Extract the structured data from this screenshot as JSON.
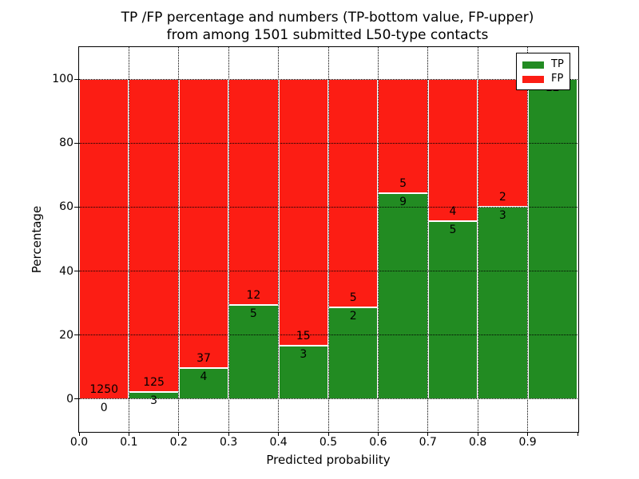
{
  "figure": {
    "title_line1": "TP /FP percentage and numbers (TP-bottom value, FP-upper)",
    "title_line2": "from among 1501 submitted L50-type contacts",
    "xlabel": "Predicted probability",
    "ylabel": "Percentage"
  },
  "legend": {
    "position": "upper-right",
    "items": [
      {
        "label": "TP",
        "color": "#228b22"
      },
      {
        "label": "FP",
        "color": "#fc1d14"
      }
    ]
  },
  "chart_data": {
    "type": "bar",
    "stacked": true,
    "units": "percent",
    "title": "TP /FP percentage and numbers (TP-bottom value, FP-upper) from among 1501 submitted L50-type contacts",
    "xlabel": "Predicted probability",
    "ylabel": "Percentage",
    "total_contacts": 1501,
    "bin_edges": [
      0.0,
      0.1,
      0.2,
      0.3,
      0.4,
      0.5,
      0.6,
      0.7,
      0.8,
      0.9,
      1.0
    ],
    "xtick_labels": [
      "0.0",
      "0.1",
      "0.2",
      "0.3",
      "0.4",
      "0.5",
      "0.6",
      "0.7",
      "0.8",
      "0.9"
    ],
    "ytick_values": [
      0,
      20,
      40,
      60,
      80,
      100
    ],
    "xlim": [
      0.0,
      1.0
    ],
    "ylim": [
      -10,
      110
    ],
    "grid": "dotted",
    "legend_position": "upper-right",
    "series": [
      {
        "name": "TP",
        "color": "#228b22",
        "counts": [
          0,
          3,
          4,
          5,
          3,
          2,
          9,
          5,
          3,
          12
        ],
        "pct": [
          0,
          2.34,
          9.76,
          29.41,
          16.67,
          28.57,
          64.29,
          55.56,
          60.0,
          100.0
        ]
      },
      {
        "name": "FP",
        "color": "#fc1d14",
        "counts": [
          1250,
          125,
          37,
          12,
          15,
          5,
          5,
          4,
          2,
          0
        ],
        "pct": [
          100.0,
          97.66,
          90.24,
          70.59,
          83.33,
          71.43,
          35.71,
          44.44,
          40.0,
          0.0
        ]
      }
    ],
    "bar_value_labels": {
      "tp": [
        "0",
        "3",
        "4",
        "5",
        "3",
        "2",
        "9",
        "5",
        "3",
        "12"
      ],
      "fp": [
        "1250",
        "125",
        "37",
        "12",
        "15",
        "5",
        "5",
        "4",
        "2",
        ""
      ]
    }
  }
}
